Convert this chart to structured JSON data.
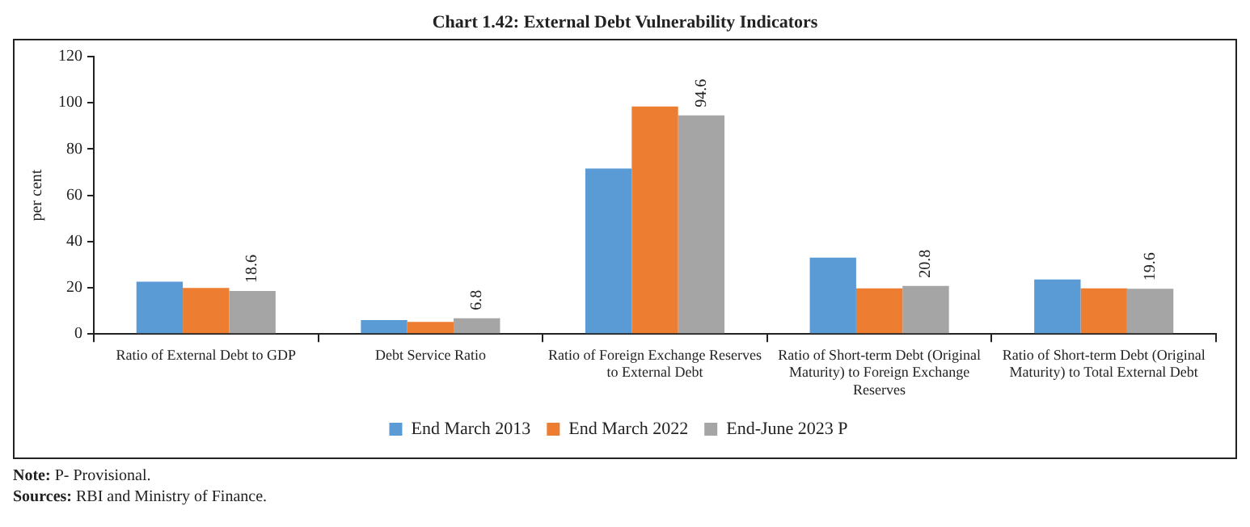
{
  "chart_data": {
    "type": "bar",
    "title": "Chart 1.42: External Debt Vulnerability Indicators",
    "ylabel": "per cent",
    "categories": [
      "Ratio of External Debt to GDP",
      "Debt Service Ratio",
      "Ratio of Foreign Exchange Reserves to External Debt",
      "Ratio of Short-term Debt (Original Maturity) to Foreign Exchange Reserves",
      "Ratio of Short-term Debt (Original Maturity) to Total External Debt"
    ],
    "series": [
      {
        "name": "End March 2013",
        "color": "#5b9bd5",
        "values": [
          22.6,
          6.0,
          71.6,
          33.0,
          23.6
        ]
      },
      {
        "name": "End March 2022",
        "color": "#ed7d31",
        "values": [
          19.9,
          5.2,
          98.4,
          19.7,
          19.7
        ]
      },
      {
        "name": "End-June 2023 P",
        "color": "#a5a5a5",
        "values": [
          18.6,
          6.8,
          94.6,
          20.8,
          19.6
        ],
        "value_labels": [
          "18.6",
          "6.8",
          "94.6",
          "20.8",
          "19.6"
        ]
      }
    ],
    "ylim": [
      0,
      120
    ],
    "yticks": [
      0,
      20,
      40,
      60,
      80,
      100,
      120
    ],
    "grid": false,
    "legend": "bottom",
    "annotations": [
      "Note: P- Provisional.",
      "Sources: RBI and Ministry of Finance."
    ]
  }
}
